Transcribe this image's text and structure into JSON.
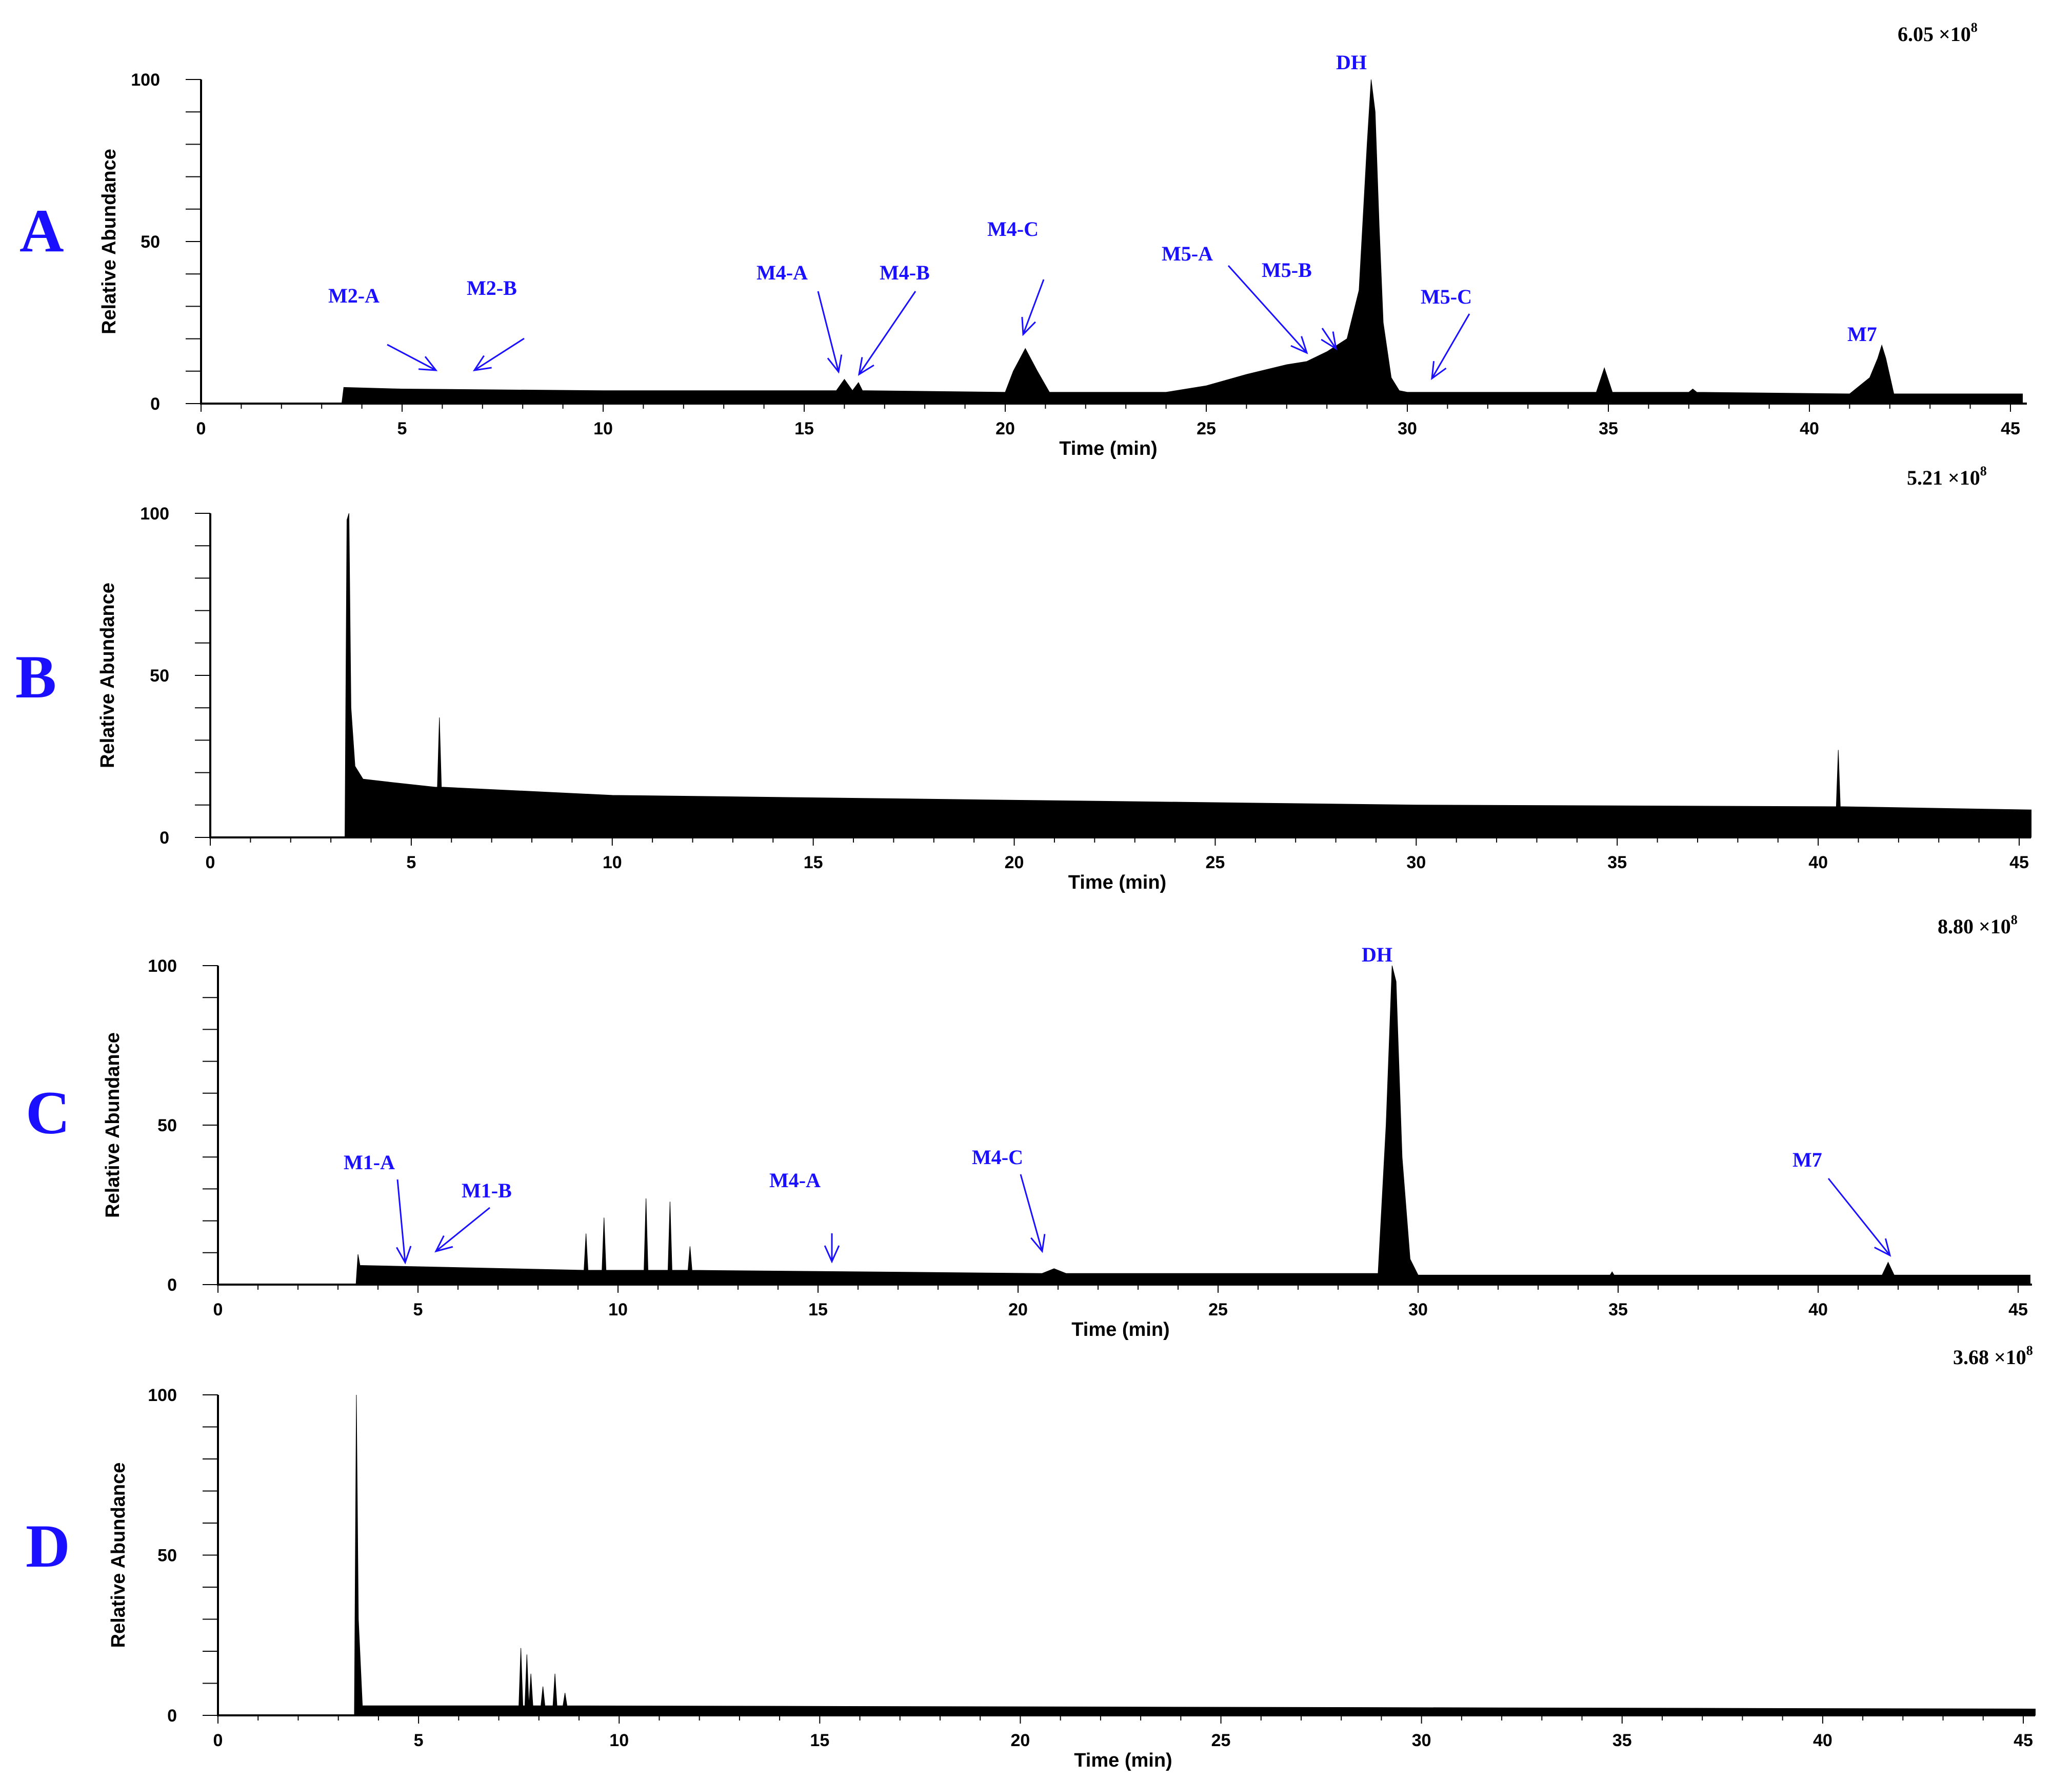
{
  "chart_data": [
    {
      "type": "area",
      "panel_label": "A",
      "scale": {
        "mantissa": "6.05",
        "times": "×",
        "base": "10",
        "exponent": "8"
      },
      "xlabel": "Time (min)",
      "ylabel": "Relative Abundance",
      "xlim": [
        0,
        45
      ],
      "ylim": [
        0,
        100
      ],
      "x_ticks": [
        "0",
        "5",
        "10",
        "15",
        "20",
        "25",
        "30",
        "35",
        "40",
        "45"
      ],
      "y_ticks": [
        "0",
        "50",
        "100"
      ],
      "series": [
        {
          "x": [
            0,
            3.5,
            3.55,
            5,
            10,
            15,
            15.8,
            16.0,
            16.2,
            16.35,
            16.45,
            16.55,
            20,
            20.2,
            20.5,
            20.8,
            21.1,
            24,
            25,
            26,
            27,
            27.5,
            28,
            28.5,
            28.8,
            29.0,
            29.1,
            29.2,
            29.3,
            29.4,
            29.6,
            29.8,
            30,
            34.7,
            34.9,
            35.1,
            37,
            37.1,
            37.2,
            41,
            41.5,
            41.7,
            41.8,
            41.9,
            42.1,
            45.3
          ],
          "y": [
            0,
            0,
            5,
            4.5,
            4,
            4,
            4,
            7.5,
            4,
            6.5,
            4,
            4,
            3.5,
            10,
            17,
            10,
            3.5,
            3.5,
            5.5,
            9,
            12,
            13,
            16,
            20,
            35,
            80,
            100,
            90,
            55,
            25,
            8,
            4,
            3.5,
            3.5,
            11,
            3.5,
            3.5,
            4.5,
            3.5,
            3,
            8,
            14,
            18,
            14,
            3,
            3
          ]
        }
      ],
      "annotations": [
        {
          "label": "M2-A",
          "x": 5.8
        },
        {
          "label": "M2-B",
          "x": 6.8
        },
        {
          "label": "M4-A",
          "x": 15.9
        },
        {
          "label": "M4-B",
          "x": 16.4
        },
        {
          "label": "M4-C",
          "x": 20.6
        },
        {
          "label": "M5-A",
          "x": 27.3
        },
        {
          "label": "M5-B",
          "x": 28.3
        },
        {
          "label": "DH",
          "x": 29.1
        },
        {
          "label": "M5-C",
          "x": 30.6
        },
        {
          "label": "M7",
          "x": 41.8
        }
      ]
    },
    {
      "type": "area",
      "panel_label": "B",
      "scale": {
        "mantissa": "5.21",
        "times": "×",
        "base": "10",
        "exponent": "8"
      },
      "xlabel": "Time (min)",
      "ylabel": "Relative Abundance",
      "xlim": [
        0,
        45
      ],
      "ylim": [
        0,
        100
      ],
      "x_ticks": [
        "0",
        "5",
        "10",
        "15",
        "20",
        "25",
        "30",
        "35",
        "40",
        "45"
      ],
      "y_ticks": [
        "0",
        "50",
        "100"
      ],
      "series": [
        {
          "x": [
            0,
            3.35,
            3.4,
            3.45,
            3.5,
            3.6,
            3.8,
            4.5,
            5.6,
            5.65,
            5.7,
            5.75,
            5.8,
            10,
            20,
            30,
            40.4,
            40.45,
            40.5,
            40.55,
            40.6,
            45.3
          ],
          "y": [
            0,
            0,
            98,
            100,
            40,
            22,
            18,
            17,
            15.5,
            15.5,
            37,
            15.5,
            15.5,
            13,
            11.5,
            10,
            9.5,
            9.5,
            27,
            9.5,
            9.5,
            8.5
          ]
        }
      ],
      "annotations": []
    },
    {
      "type": "area",
      "panel_label": "C",
      "scale": {
        "mantissa": "8.80",
        "times": "×",
        "base": "10",
        "exponent": "8"
      },
      "xlabel": "Time (min)",
      "ylabel": "Relative Abundance",
      "xlim": [
        0,
        45
      ],
      "ylim": [
        0,
        100
      ],
      "x_ticks": [
        "0",
        "5",
        "10",
        "15",
        "20",
        "25",
        "30",
        "35",
        "40",
        "45"
      ],
      "y_ticks": [
        "0",
        "50",
        "100"
      ],
      "series": [
        {
          "x": [
            0,
            3.45,
            3.5,
            3.55,
            3.6,
            9.15,
            9.2,
            9.25,
            9.6,
            9.65,
            9.7,
            10.65,
            10.7,
            10.75,
            11.25,
            11.3,
            11.35,
            11.75,
            11.8,
            11.85,
            20.6,
            20.9,
            21.2,
            29.0,
            29.2,
            29.35,
            29.45,
            29.6,
            29.8,
            30.0,
            34.8,
            34.85,
            34.9,
            41.6,
            41.75,
            41.9,
            45.3
          ],
          "y": [
            0,
            0,
            9.5,
            6,
            6,
            4.5,
            16,
            4.5,
            4.5,
            21,
            4.5,
            4.5,
            27,
            4.5,
            4.5,
            26,
            4.5,
            4.5,
            12,
            4.5,
            3.5,
            5,
            3.5,
            3.5,
            50,
            100,
            95,
            40,
            8,
            3,
            3,
            4,
            3,
            3,
            7,
            3,
            3
          ]
        }
      ],
      "annotations": [
        {
          "label": "M1-A",
          "x": 5.0
        },
        {
          "label": "M1-B",
          "x": 5.6
        },
        {
          "label": "M4-A",
          "x": 15.4
        },
        {
          "label": "M4-C",
          "x": 20.8
        },
        {
          "label": "DH",
          "x": 29.4
        },
        {
          "label": "M7",
          "x": 41.7
        }
      ]
    },
    {
      "type": "area",
      "panel_label": "D",
      "scale": {
        "mantissa": "3.68",
        "times": "×",
        "base": "10",
        "exponent": "8"
      },
      "xlabel": "Time (min)",
      "ylabel": "Relative Abundance",
      "xlim": [
        0,
        45
      ],
      "ylim": [
        0,
        100
      ],
      "x_ticks": [
        "0",
        "5",
        "10",
        "15",
        "20",
        "25",
        "30",
        "35",
        "40",
        "45"
      ],
      "y_ticks": [
        "0",
        "50",
        "100"
      ],
      "series": [
        {
          "x": [
            0,
            3.4,
            3.45,
            3.5,
            3.6,
            7.5,
            7.55,
            7.6,
            7.65,
            7.7,
            7.75,
            7.8,
            7.85,
            7.9,
            8.05,
            8.1,
            8.15,
            8.35,
            8.4,
            8.45,
            8.6,
            8.65,
            8.7,
            45.3
          ],
          "y": [
            0,
            0,
            100,
            30,
            3,
            3,
            21,
            3,
            3,
            19,
            3,
            13,
            3,
            3,
            3,
            9,
            3,
            3,
            13,
            3,
            3,
            7,
            3,
            2
          ]
        }
      ],
      "annotations": []
    }
  ]
}
